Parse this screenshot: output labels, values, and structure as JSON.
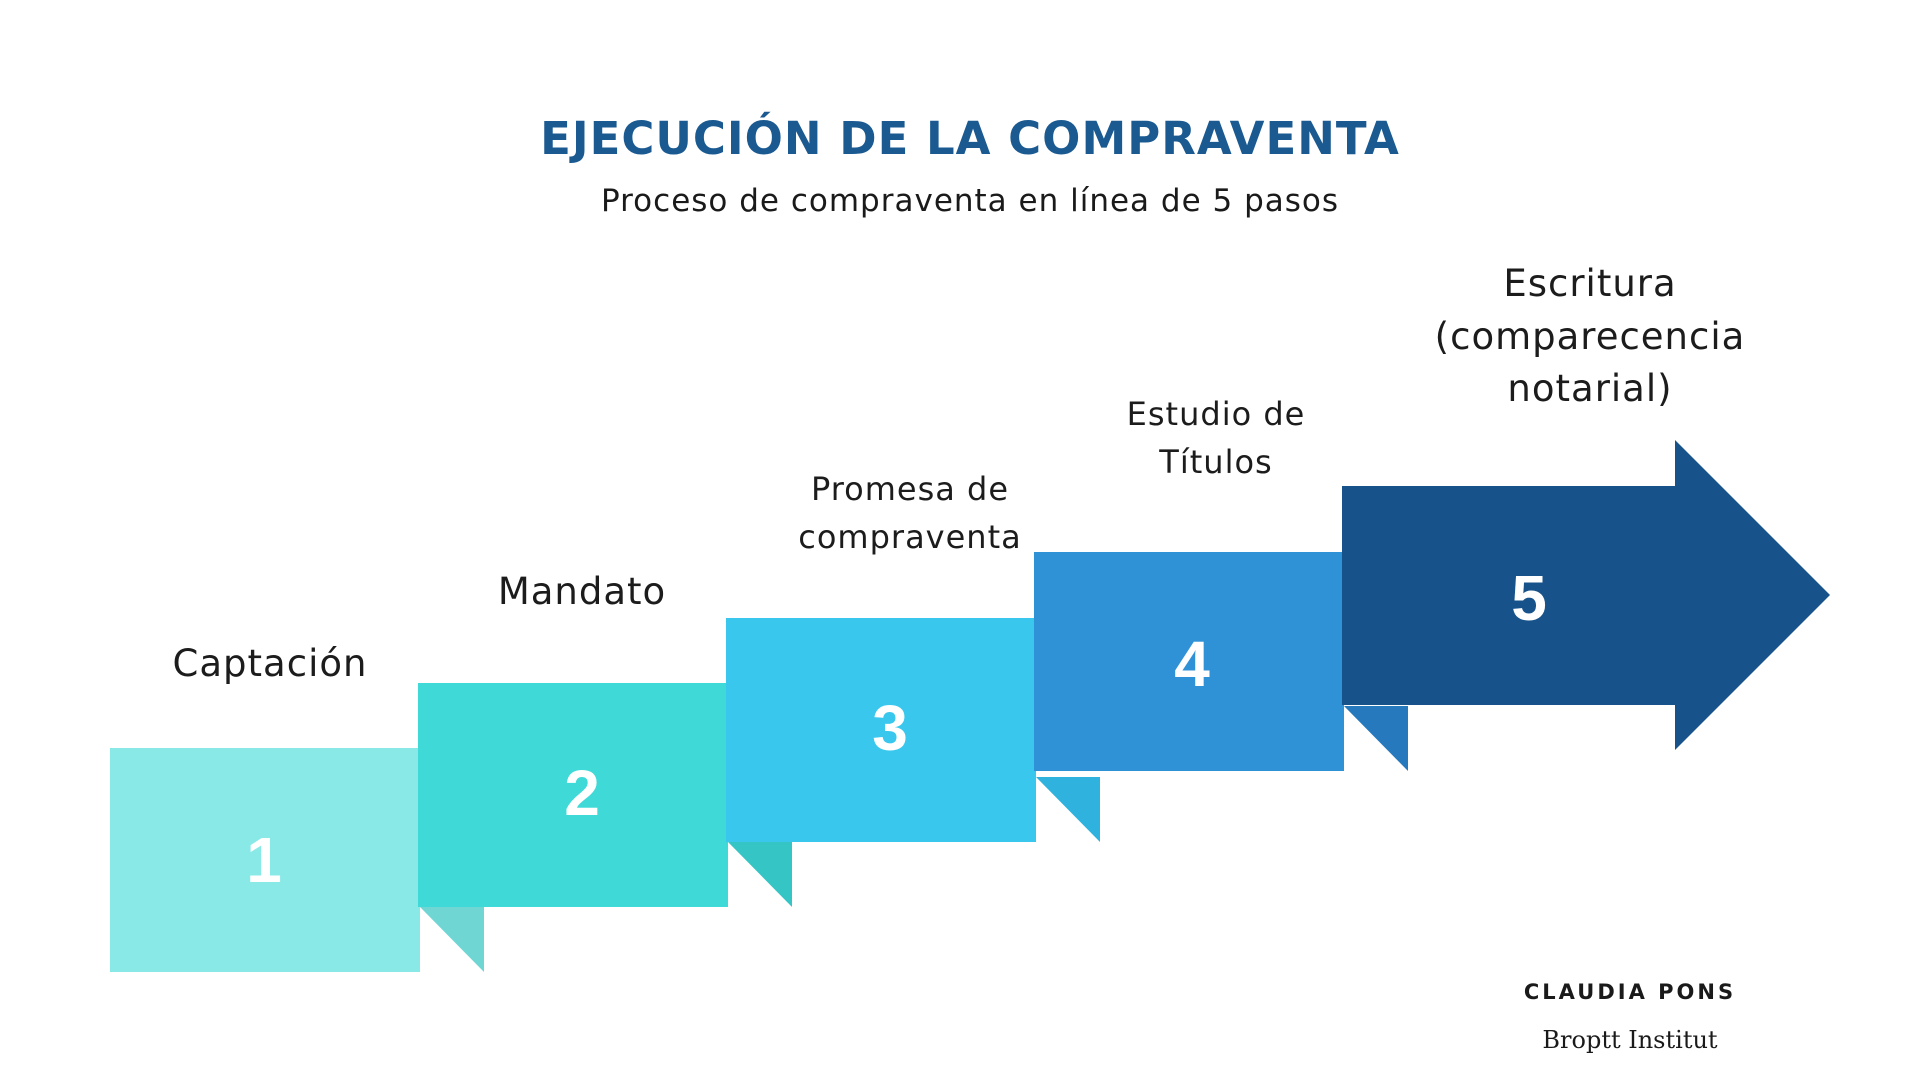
{
  "title": "EJECUCIÓN DE LA COMPRAVENTA",
  "subtitle": "Proceso de compraventa en línea de 5 pasos",
  "steps": [
    {
      "number": "1",
      "label": "Captación",
      "color": "#89e9e7",
      "shade": "#6fd6d4"
    },
    {
      "number": "2",
      "label": "Mandato",
      "color": "#3fd9d7",
      "shade": "#34c5c4"
    },
    {
      "number": "3",
      "label": "Promesa de compraventa",
      "color": "#3ac7ed",
      "shade": "#2fb3de"
    },
    {
      "number": "4",
      "label": "Estudio de Títulos",
      "color": "#2f92d6",
      "shade": "#2679bd"
    },
    {
      "number": "5",
      "label": "Escritura (comparecencia notarial)",
      "color": "#17538a"
    }
  ],
  "footer": {
    "author": "CLAUDIA PONS",
    "organization": "Broptt Institut"
  }
}
